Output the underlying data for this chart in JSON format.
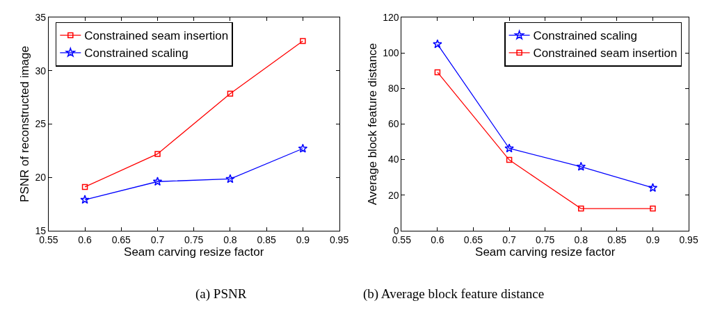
{
  "chart_data": [
    {
      "type": "line",
      "xlabel": "Seam carving resize factor",
      "ylabel": "PSNR of reconstructed image",
      "x": [
        0.6,
        0.7,
        0.8,
        0.9
      ],
      "series": [
        {
          "name": "Constrained seam insertion",
          "color": "#ff0000",
          "marker": "square",
          "values": [
            19.1,
            22.2,
            27.85,
            32.8
          ]
        },
        {
          "name": "Constrained scaling",
          "color": "#0000ff",
          "marker": "star",
          "values": [
            17.9,
            19.6,
            19.85,
            22.7
          ]
        }
      ],
      "xlim": [
        0.55,
        0.95
      ],
      "xticks": [
        0.55,
        0.6,
        0.65,
        0.7,
        0.75,
        0.8,
        0.85,
        0.9,
        0.95
      ],
      "ylim": [
        15,
        35
      ],
      "yticks": [
        15,
        20,
        25,
        30,
        35
      ],
      "legend": "top left",
      "line_style": "solid",
      "annotations": [
        "(a) PSNR"
      ]
    },
    {
      "type": "line",
      "xlabel": "Seam carving resize factor",
      "ylabel": "Average block feature distance",
      "x": [
        0.6,
        0.7,
        0.8,
        0.9
      ],
      "series": [
        {
          "name": "Constrained scaling",
          "color": "#0000ff",
          "marker": "star",
          "values": [
            105,
            46.3,
            36,
            24.1
          ]
        },
        {
          "name": "Constrained seam insertion",
          "color": "#ff0000",
          "marker": "square",
          "values": [
            89.2,
            39.8,
            12.4,
            12.4
          ]
        }
      ],
      "xlim": [
        0.55,
        0.95
      ],
      "xticks": [
        0.55,
        0.6,
        0.65,
        0.7,
        0.75,
        0.8,
        0.85,
        0.9,
        0.95
      ],
      "ylim": [
        0,
        120
      ],
      "yticks": [
        0,
        20,
        40,
        60,
        80,
        100,
        120
      ],
      "legend": "top right",
      "line_style": "solid",
      "annotations": [
        "(b) Average block feature distance"
      ]
    }
  ]
}
